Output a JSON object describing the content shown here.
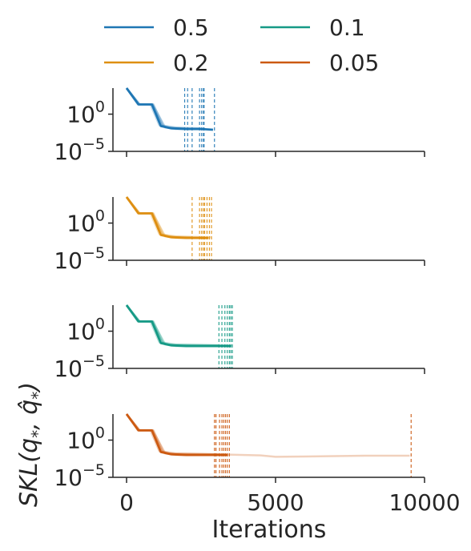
{
  "legend": {
    "placement": "top-center",
    "entries": [
      {
        "label": "0.5",
        "color": "#1f77b4"
      },
      {
        "label": "0.1",
        "color": "#169a86"
      },
      {
        "label": "0.2",
        "color": "#de8f12"
      },
      {
        "label": "0.05",
        "color": "#cc5a12"
      }
    ]
  },
  "chart_data": {
    "type": "line",
    "xlabel": "Iterations",
    "ylabel": "SKL(q*, q̂*)",
    "ylabel_parts": {
      "main": "SKL(q",
      "sub1": "*",
      "mid": ", ",
      "hat": "q̂",
      "sub2": "*",
      "close": ")"
    },
    "x_ticks": [
      0,
      5000,
      10000
    ],
    "x_tick_labels": [
      "0",
      "5000",
      "10000"
    ],
    "xlim": [
      -400,
      10000
    ],
    "y_scale": "log",
    "y_ticks": [
      "10^0",
      "10^-5"
    ],
    "y_tick_base": "10",
    "y_tick_exponents": [
      "0",
      "−5"
    ],
    "ylim_log10": [
      -5,
      3.5
    ],
    "grid": false,
    "panels": [
      {
        "name": "0.5",
        "color": "#1f77b4",
        "main_run": [
          [
            0,
            3.5
          ],
          [
            400,
            1.3
          ],
          [
            850,
            1.3
          ],
          [
            1150,
            -1.6
          ],
          [
            1500,
            -1.9
          ],
          [
            2000,
            -2.0
          ],
          [
            2500,
            -2.0
          ],
          [
            2900,
            -2.1
          ]
        ],
        "runs": [
          [
            [
              0,
              3.5
            ],
            [
              450,
              1.3
            ],
            [
              900,
              1.3
            ],
            [
              1250,
              -1.7
            ],
            [
              1600,
              -1.9
            ],
            [
              2100,
              -2.0
            ],
            [
              2600,
              -2.0
            ]
          ],
          [
            [
              0,
              3.5
            ],
            [
              380,
              1.3
            ],
            [
              800,
              1.3
            ],
            [
              1100,
              -1.5
            ],
            [
              1450,
              -1.8
            ],
            [
              1950,
              -1.9
            ]
          ],
          [
            [
              0,
              3.5
            ],
            [
              420,
              1.3
            ],
            [
              880,
              1.3
            ],
            [
              1300,
              -1.8
            ],
            [
              1650,
              -2.0
            ],
            [
              2200,
              -2.0
            ]
          ],
          [
            [
              0,
              3.5
            ],
            [
              400,
              1.3
            ],
            [
              850,
              1.3
            ],
            [
              1200,
              -1.6
            ],
            [
              1550,
              -1.9
            ],
            [
              2450,
              -1.9
            ]
          ],
          [
            [
              0,
              3.5
            ],
            [
              430,
              1.3
            ],
            [
              870,
              1.3
            ],
            [
              1180,
              -1.5
            ],
            [
              1700,
              -1.8
            ],
            [
              2550,
              -1.9
            ]
          ]
        ],
        "stop_markers": [
          1950,
          2050,
          2200,
          2450,
          2520,
          2580,
          2600,
          2950
        ]
      },
      {
        "name": "0.2",
        "color": "#de8f12",
        "main_run": [
          [
            0,
            3.5
          ],
          [
            400,
            1.3
          ],
          [
            850,
            1.3
          ],
          [
            1150,
            -1.6
          ],
          [
            1500,
            -1.9
          ],
          [
            2000,
            -2.0
          ],
          [
            2500,
            -2.0
          ],
          [
            2750,
            -2.0
          ]
        ],
        "runs": [
          [
            [
              0,
              3.5
            ],
            [
              450,
              1.3
            ],
            [
              900,
              1.3
            ],
            [
              1250,
              -1.7
            ],
            [
              1600,
              -1.9
            ],
            [
              2100,
              -2.0
            ],
            [
              2600,
              -2.0
            ]
          ],
          [
            [
              0,
              3.5
            ],
            [
              380,
              1.3
            ],
            [
              800,
              1.3
            ],
            [
              1100,
              -1.5
            ],
            [
              1450,
              -1.8
            ],
            [
              2200,
              -1.9
            ]
          ],
          [
            [
              0,
              3.5
            ],
            [
              420,
              1.3
            ],
            [
              880,
              1.3
            ],
            [
              1300,
              -1.8
            ],
            [
              1650,
              -2.0
            ],
            [
              2450,
              -2.0
            ]
          ],
          [
            [
              0,
              3.5
            ],
            [
              400,
              1.3
            ],
            [
              850,
              1.3
            ],
            [
              1200,
              -1.6
            ],
            [
              1550,
              -1.9
            ],
            [
              2550,
              -1.9
            ]
          ],
          [
            [
              0,
              3.5
            ],
            [
              430,
              1.3
            ],
            [
              870,
              1.3
            ],
            [
              1180,
              -1.5
            ],
            [
              1700,
              -1.8
            ],
            [
              2850,
              -1.9
            ]
          ]
        ],
        "stop_markers": [
          2200,
          2450,
          2520,
          2580,
          2620,
          2700,
          2780,
          2850
        ]
      },
      {
        "name": "0.1",
        "color": "#169a86",
        "main_run": [
          [
            0,
            3.5
          ],
          [
            400,
            1.3
          ],
          [
            850,
            1.3
          ],
          [
            1150,
            -1.6
          ],
          [
            1500,
            -1.9
          ],
          [
            2000,
            -2.0
          ],
          [
            2500,
            -2.0
          ],
          [
            3500,
            -2.0
          ]
        ],
        "runs": [
          [
            [
              0,
              3.5
            ],
            [
              450,
              1.3
            ],
            [
              900,
              1.3
            ],
            [
              1250,
              -1.7
            ],
            [
              1600,
              -1.9
            ],
            [
              2100,
              -2.0
            ],
            [
              3200,
              -2.0
            ]
          ],
          [
            [
              0,
              3.5
            ],
            [
              380,
              1.3
            ],
            [
              800,
              1.3
            ],
            [
              1100,
              -1.5
            ],
            [
              1450,
              -1.8
            ],
            [
              3100,
              -1.9
            ]
          ],
          [
            [
              0,
              3.5
            ],
            [
              420,
              1.3
            ],
            [
              880,
              1.3
            ],
            [
              1300,
              -1.8
            ],
            [
              1650,
              -2.0
            ],
            [
              3300,
              -2.0
            ]
          ],
          [
            [
              0,
              3.5
            ],
            [
              400,
              1.3
            ],
            [
              850,
              1.3
            ],
            [
              1200,
              -1.6
            ],
            [
              1550,
              -1.9
            ],
            [
              3400,
              -1.9
            ]
          ],
          [
            [
              0,
              3.5
            ],
            [
              430,
              1.3
            ],
            [
              870,
              1.3
            ],
            [
              1180,
              -1.5
            ],
            [
              1700,
              -1.8
            ],
            [
              3550,
              -1.9
            ]
          ]
        ],
        "stop_markers": [
          3100,
          3200,
          3300,
          3380,
          3450,
          3500,
          3550
        ]
      },
      {
        "name": "0.05",
        "color": "#cc5a12",
        "main_run": [
          [
            0,
            3.5
          ],
          [
            400,
            1.3
          ],
          [
            850,
            1.3
          ],
          [
            1150,
            -1.6
          ],
          [
            1500,
            -1.9
          ],
          [
            2000,
            -2.0
          ],
          [
            2500,
            -2.0
          ],
          [
            3400,
            -2.0
          ]
        ],
        "runs": [
          [
            [
              0,
              3.5
            ],
            [
              450,
              1.3
            ],
            [
              900,
              1.3
            ],
            [
              1250,
              -1.7
            ],
            [
              1600,
              -1.9
            ],
            [
              2100,
              -2.0
            ],
            [
              3000,
              -2.0
            ]
          ],
          [
            [
              0,
              3.5
            ],
            [
              380,
              1.3
            ],
            [
              800,
              1.3
            ],
            [
              1100,
              -1.5
            ],
            [
              1450,
              -1.8
            ],
            [
              3100,
              -1.9
            ]
          ],
          [
            [
              0,
              3.5
            ],
            [
              420,
              1.3
            ],
            [
              880,
              1.3
            ],
            [
              1300,
              -1.8
            ],
            [
              1650,
              -2.0
            ],
            [
              3250,
              -2.0
            ]
          ],
          [
            [
              0,
              3.5
            ],
            [
              400,
              1.3
            ],
            [
              850,
              1.3
            ],
            [
              1200,
              -1.6
            ],
            [
              1550,
              -1.9
            ],
            [
              3350,
              -1.9
            ]
          ],
          [
            [
              0,
              3.5
            ],
            [
              430,
              1.3
            ],
            [
              870,
              1.3
            ],
            [
              1180,
              -1.5
            ],
            [
              1700,
              -1.8
            ],
            [
              3000,
              -1.9
            ],
            [
              4500,
              -2.05
            ],
            [
              5000,
              -2.25
            ],
            [
              6000,
              -2.2
            ],
            [
              7000,
              -2.15
            ],
            [
              8000,
              -2.1
            ],
            [
              9000,
              -2.1
            ],
            [
              9500,
              -2.1
            ]
          ]
        ],
        "stop_markers": [
          2950,
          3000,
          3120,
          3200,
          3260,
          3320,
          3380,
          3450,
          9550
        ]
      }
    ]
  }
}
